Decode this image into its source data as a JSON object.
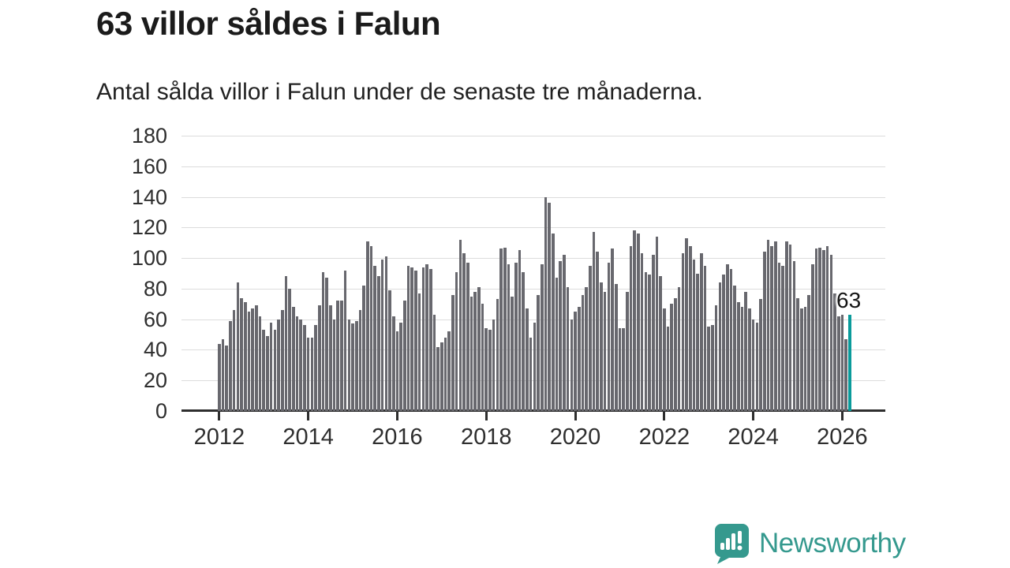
{
  "header": {
    "title": "63 villor såldes i Falun",
    "subtitle": "Antal sålda villor i Falun under de senaste tre månaderna."
  },
  "colors": {
    "bar": "#68686e",
    "highlight": "#0a9b9b",
    "grid": "#dcdcdc",
    "axis": "#2e2e2e",
    "text": "#1b1b1b",
    "logo": "#35998e"
  },
  "chart_data": {
    "type": "bar",
    "title": "63 villor såldes i Falun",
    "subtitle": "Antal sålda villor i Falun under de senaste tre månaderna.",
    "xlabel": "",
    "ylabel": "",
    "ylim": [
      0,
      180
    ],
    "yticks": [
      0,
      20,
      40,
      60,
      80,
      100,
      120,
      140,
      160,
      180
    ],
    "xtick_labels": [
      "2012",
      "2014",
      "2016",
      "2018",
      "2020",
      "2022",
      "2024",
      "2026"
    ],
    "frequency": "monthly",
    "start_month": "2012-01",
    "end_month": "2026-03",
    "grid": "horizontal",
    "values": [
      44,
      47,
      43,
      59,
      66,
      84,
      74,
      71,
      65,
      67,
      69,
      62,
      53,
      49,
      58,
      53,
      60,
      66,
      88,
      80,
      68,
      62,
      60,
      56,
      48,
      48,
      56,
      69,
      91,
      87,
      69,
      60,
      72,
      72,
      92,
      60,
      57,
      59,
      66,
      82,
      111,
      108,
      95,
      88,
      99,
      101,
      79,
      62,
      52,
      58,
      72,
      95,
      94,
      92,
      77,
      94,
      96,
      93,
      63,
      42,
      45,
      48,
      52,
      76,
      91,
      112,
      103,
      97,
      75,
      78,
      81,
      70,
      54,
      53,
      60,
      73,
      106,
      107,
      96,
      75,
      97,
      105,
      91,
      67,
      48,
      58,
      76,
      96,
      140,
      136,
      116,
      87,
      98,
      102,
      81,
      60,
      65,
      68,
      76,
      81,
      95,
      117,
      104,
      84,
      78,
      97,
      106,
      83,
      54,
      54,
      78,
      108,
      118,
      116,
      103,
      91,
      89,
      102,
      114,
      88,
      67,
      55,
      70,
      74,
      81,
      103,
      113,
      108,
      99,
      90,
      103,
      95,
      55,
      56,
      69,
      84,
      89,
      96,
      93,
      82,
      71,
      68,
      78,
      67,
      60,
      58,
      73,
      104,
      112,
      108,
      111,
      97,
      95,
      111,
      109,
      98,
      74,
      67,
      68,
      76,
      96,
      106,
      107,
      105,
      108,
      102,
      77,
      62,
      63,
      47,
      63
    ],
    "highlight": {
      "index_from_end": 1,
      "value": 63,
      "label": "63"
    },
    "legend": null
  },
  "footer": {
    "brand": "Newsworthy"
  }
}
